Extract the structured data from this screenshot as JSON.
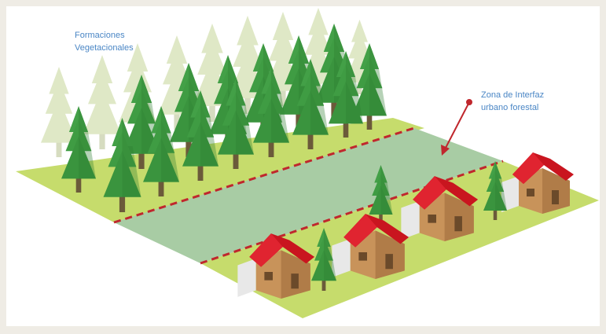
{
  "labels": {
    "forest": [
      "Formaciones",
      "Vegetacionales"
    ],
    "interface": [
      "Zona de Interfaz",
      "urbano forestal"
    ]
  }
}
